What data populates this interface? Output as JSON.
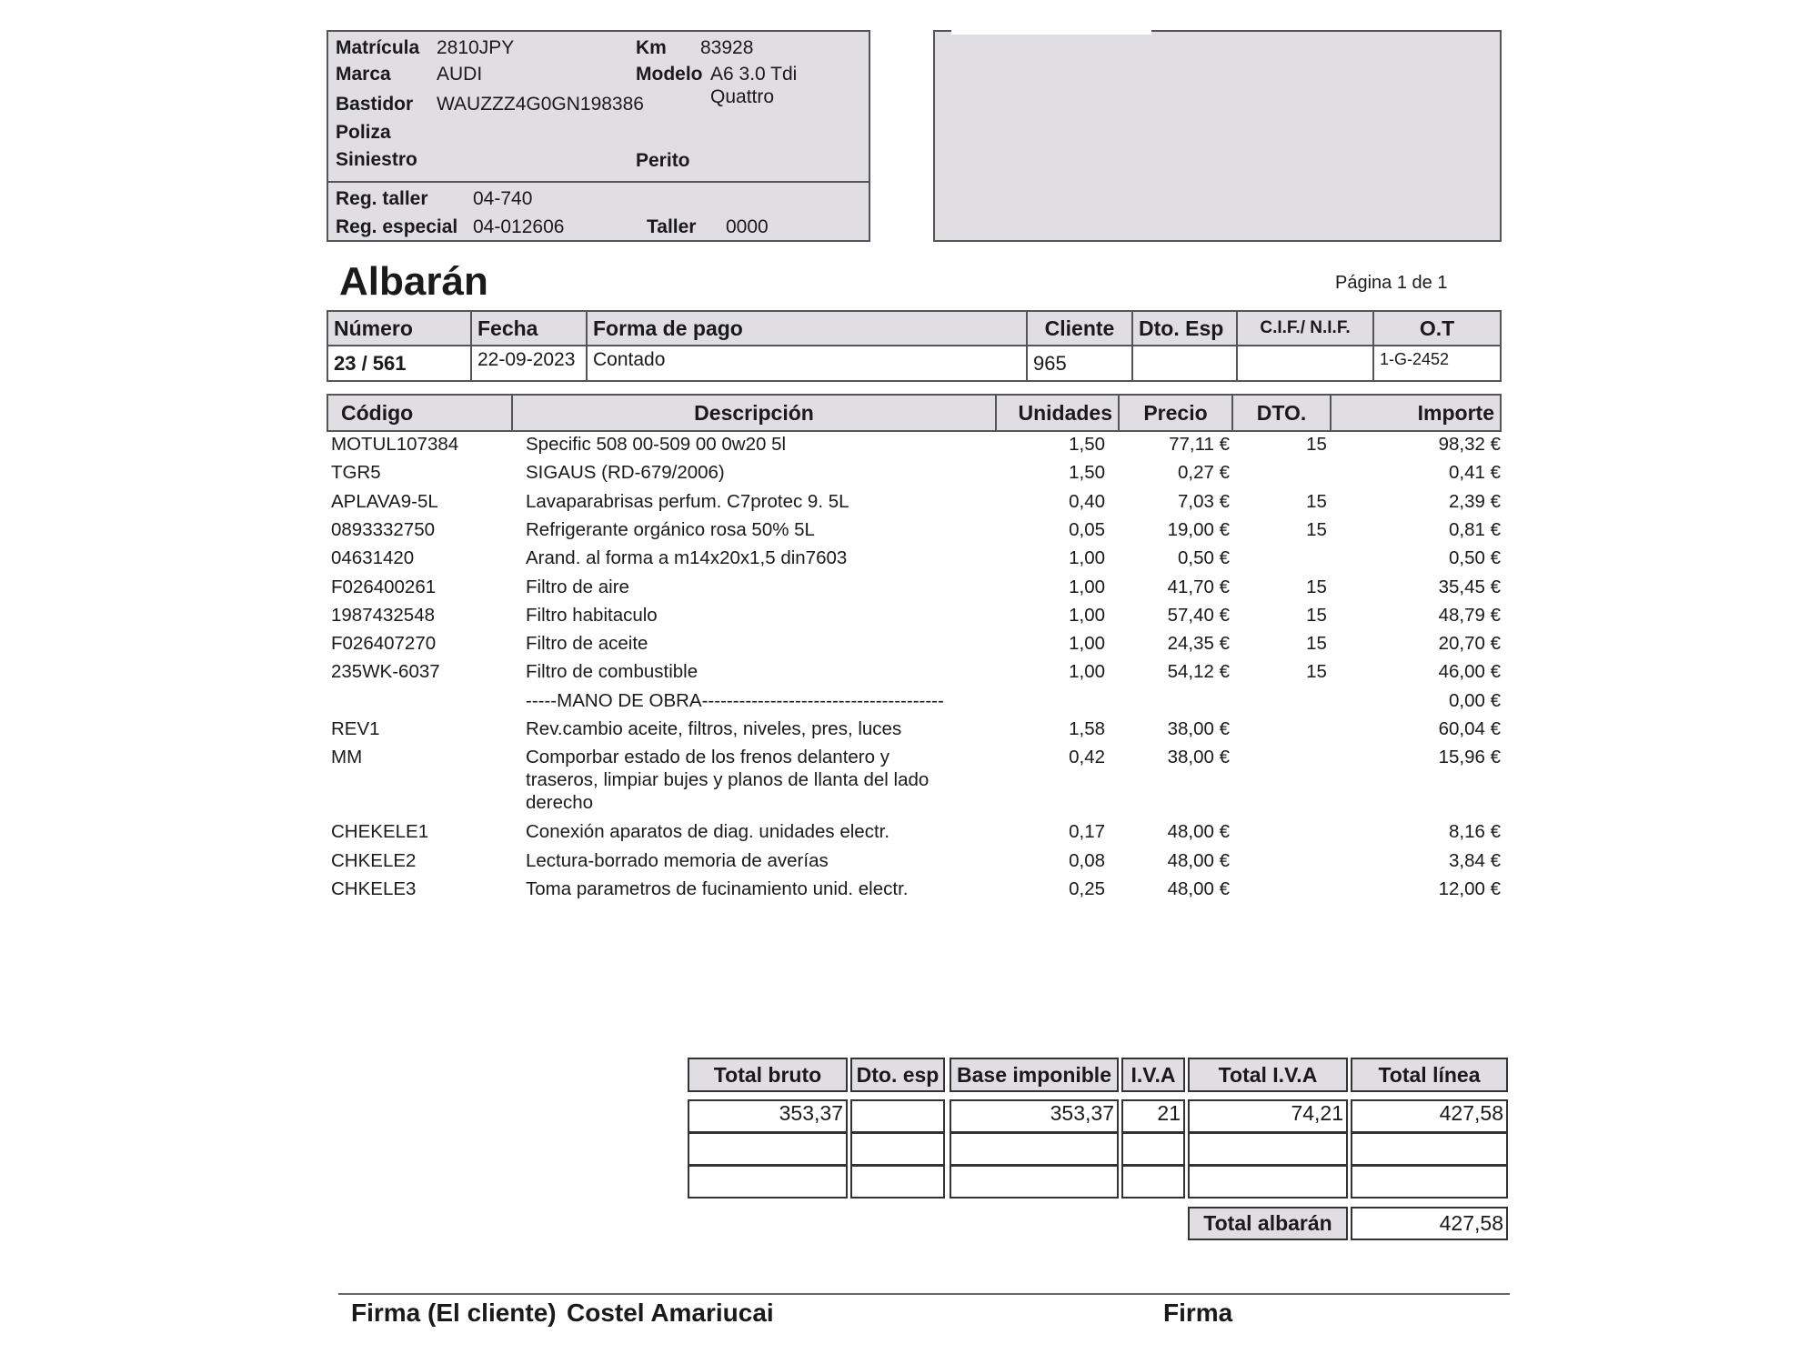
{
  "vehicle": {
    "matricula_label": "Matrícula",
    "matricula": "2810JPY",
    "km_label": "Km",
    "km": "83928",
    "marca_label": "Marca",
    "marca": "AUDI",
    "modelo_label": "Modelo",
    "modelo_line1": "A6 3.0 Tdi",
    "modelo_line2": "Quattro",
    "bastidor_label": "Bastidor",
    "bastidor": "WAUZZZ4G0GN198386",
    "poliza_label": "Poliza",
    "siniestro_label": "Siniestro",
    "perito_label": "Perito",
    "reg_taller_label": "Reg. taller",
    "reg_taller": "04-740",
    "reg_especial_label": "Reg. especial",
    "reg_especial": "04-012606",
    "taller_label": "Taller",
    "taller": "0000"
  },
  "title": "Albarán",
  "page_info": "Página 1 de 1",
  "header_table": {
    "columns": [
      "Número",
      "Fecha",
      "Forma de pago",
      "Cliente",
      "Dto. Esp",
      "C.I.F./ N.I.F.",
      "O.T"
    ],
    "values": [
      "23 / 561",
      "22-09-2023",
      "Contado",
      "965",
      "",
      "",
      "1-G-2452"
    ]
  },
  "items": {
    "columns": [
      "Código",
      "Descripción",
      "Unidades",
      "Precio",
      "DTO.",
      "Importe"
    ],
    "rows": [
      {
        "code": "MOTUL107384",
        "desc": "Specific 508 00-509 00 0w20 5l",
        "units": "1,50",
        "price": "77,11 €",
        "dto": "15",
        "amount": "98,32 €"
      },
      {
        "code": "TGR5",
        "desc": "SIGAUS (RD-679/2006)",
        "units": "1,50",
        "price": "0,27 €",
        "dto": "",
        "amount": "0,41 €"
      },
      {
        "code": "APLAVA9-5L",
        "desc": "Lavaparabrisas perfum. C7protec 9. 5L",
        "units": "0,40",
        "price": "7,03 €",
        "dto": "15",
        "amount": "2,39 €"
      },
      {
        "code": "0893332750",
        "desc": "Refrigerante orgánico rosa 50% 5L",
        "units": "0,05",
        "price": "19,00 €",
        "dto": "15",
        "amount": "0,81 €"
      },
      {
        "code": "04631420",
        "desc": "Arand. al forma a m14x20x1,5 din7603",
        "units": "1,00",
        "price": "0,50 €",
        "dto": "",
        "amount": "0,50 €"
      },
      {
        "code": "F026400261",
        "desc": "Filtro de aire",
        "units": "1,00",
        "price": "41,70 €",
        "dto": "15",
        "amount": "35,45 €"
      },
      {
        "code": "1987432548",
        "desc": "Filtro habitaculo",
        "units": "1,00",
        "price": "57,40 €",
        "dto": "15",
        "amount": "48,79 €"
      },
      {
        "code": "F026407270",
        "desc": "Filtro de aceite",
        "units": "1,00",
        "price": "24,35 €",
        "dto": "15",
        "amount": "20,70 €"
      },
      {
        "code": "235WK-6037",
        "desc": "Filtro de combustible",
        "units": "1,00",
        "price": "54,12 €",
        "dto": "15",
        "amount": "46,00 €"
      },
      {
        "code": "",
        "desc": "-----MANO DE OBRA---------------------------------------",
        "units": "",
        "price": "",
        "dto": "",
        "amount": "0,00 €"
      },
      {
        "code": "REV1",
        "desc": "Rev.cambio aceite, filtros, niveles, pres, luces",
        "units": "1,58",
        "price": "38,00 €",
        "dto": "",
        "amount": "60,04 €"
      },
      {
        "code": "MM",
        "desc": "Comporbar estado de los frenos delantero y\ntraseros, limpiar bujes y planos de llanta del lado\nderecho",
        "units": "0,42",
        "price": "38,00 €",
        "dto": "",
        "amount": "15,96 €"
      },
      {
        "code": "CHEKELE1",
        "desc": "Conexión aparatos de diag. unidades electr.",
        "units": "0,17",
        "price": "48,00 €",
        "dto": "",
        "amount": "8,16 €"
      },
      {
        "code": "CHKELE2",
        "desc": "Lectura-borrado memoria de averías",
        "units": "0,08",
        "price": "48,00 €",
        "dto": "",
        "amount": "3,84 €"
      },
      {
        "code": "CHKELE3",
        "desc": "Toma parametros de fucinamiento unid. electr.",
        "units": "0,25",
        "price": "48,00 €",
        "dto": "",
        "amount": "12,00 €"
      }
    ]
  },
  "totals": {
    "columns": [
      "Total bruto",
      "Dto. esp",
      "Base imponible",
      "I.V.A",
      "Total I.V.A",
      "Total línea"
    ],
    "rows": [
      [
        "353,37",
        "",
        "353,37",
        "21",
        "74,21",
        "427,58"
      ],
      [
        "",
        "",
        "",
        "",
        "",
        ""
      ],
      [
        "",
        "",
        "",
        "",
        "",
        ""
      ]
    ],
    "total_albaran_label": "Total albarán",
    "total_albaran": "427,58"
  },
  "footer": {
    "firma_cliente_label": "Firma (El cliente)",
    "cliente_name": "Costel Amariucai",
    "firma_label": "Firma"
  },
  "colors": {
    "box_fill": "#e1dee3",
    "border": "#555555"
  }
}
